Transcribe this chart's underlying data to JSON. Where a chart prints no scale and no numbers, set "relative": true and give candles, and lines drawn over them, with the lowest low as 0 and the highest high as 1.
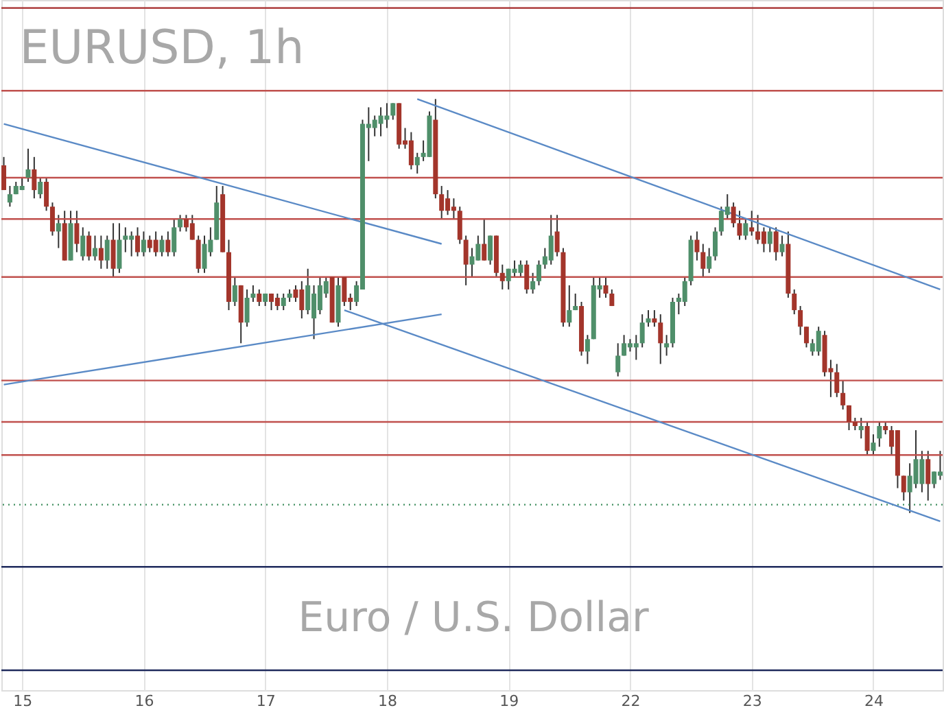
{
  "chart_data": {
    "type": "candlestick",
    "relative": true,
    "annotations": [
      "EURUSD, 1h",
      "Euro / U.S. Dollar"
    ],
    "categories": [
      null,
      null,
      null,
      "15",
      null,
      null,
      null,
      null,
      null,
      null,
      null,
      null,
      null,
      null,
      null,
      null,
      null,
      null,
      null,
      null,
      null,
      null,
      null,
      "16",
      null,
      null,
      null,
      null,
      null,
      null,
      null,
      null,
      null,
      null,
      null,
      null,
      null,
      null,
      null,
      null,
      null,
      null,
      null,
      "17",
      null,
      null,
      null,
      null,
      null,
      null,
      null,
      null,
      null,
      null,
      null,
      null,
      null,
      null,
      null,
      null,
      null,
      null,
      null,
      "18",
      null,
      null,
      null,
      null,
      null,
      null,
      null,
      null,
      null,
      null,
      null,
      null,
      null,
      null,
      null,
      null,
      null,
      null,
      null,
      "19",
      null,
      null,
      null,
      null,
      null,
      null,
      null,
      null,
      null,
      null,
      null,
      null,
      null,
      null,
      null,
      null,
      null,
      null,
      null,
      "22",
      null,
      null,
      null,
      null,
      null,
      null,
      null,
      null,
      null,
      null,
      null,
      null,
      null,
      null,
      null,
      null,
      null,
      null,
      null,
      "23",
      null,
      null,
      null,
      null,
      null,
      null,
      null,
      null,
      null,
      null,
      null,
      null,
      null,
      null,
      null,
      null,
      null,
      null,
      null,
      "24",
      null,
      null,
      null,
      null,
      null,
      null,
      null,
      null,
      null,
      null,
      null
    ],
    "ohlc": [
      [
        0.84,
        0.86,
        0.78,
        0.78
      ],
      [
        0.75,
        0.79,
        0.74,
        0.77
      ],
      [
        0.77,
        0.8,
        0.77,
        0.79
      ],
      [
        0.78,
        0.81,
        0.78,
        0.79
      ],
      [
        0.81,
        0.88,
        0.8,
        0.83
      ],
      [
        0.83,
        0.86,
        0.76,
        0.78
      ],
      [
        0.77,
        0.81,
        0.76,
        0.8
      ],
      [
        0.8,
        0.81,
        0.73,
        0.74
      ],
      [
        0.74,
        0.75,
        0.67,
        0.68
      ],
      [
        0.68,
        0.72,
        0.64,
        0.7
      ],
      [
        0.7,
        0.73,
        0.61,
        0.61
      ],
      [
        0.61,
        0.73,
        0.61,
        0.7
      ],
      [
        0.7,
        0.73,
        0.63,
        0.65
      ],
      [
        0.62,
        0.69,
        0.61,
        0.67
      ],
      [
        0.67,
        0.68,
        0.61,
        0.62
      ],
      [
        0.62,
        0.67,
        0.61,
        0.64
      ],
      [
        0.64,
        0.67,
        0.59,
        0.61
      ],
      [
        0.61,
        0.67,
        0.59,
        0.66
      ],
      [
        0.66,
        0.7,
        0.57,
        0.59
      ],
      [
        0.59,
        0.7,
        0.58,
        0.66
      ],
      [
        0.66,
        0.69,
        0.63,
        0.67
      ],
      [
        0.66,
        0.68,
        0.62,
        0.67
      ],
      [
        0.67,
        0.69,
        0.62,
        0.63
      ],
      [
        0.63,
        0.68,
        0.62,
        0.66
      ],
      [
        0.66,
        0.67,
        0.63,
        0.64
      ],
      [
        0.66,
        0.68,
        0.62,
        0.63
      ],
      [
        0.63,
        0.67,
        0.62,
        0.66
      ],
      [
        0.66,
        0.68,
        0.62,
        0.63
      ],
      [
        0.63,
        0.71,
        0.62,
        0.69
      ],
      [
        0.69,
        0.72,
        0.68,
        0.71
      ],
      [
        0.71,
        0.72,
        0.68,
        0.69
      ],
      [
        0.7,
        0.72,
        0.66,
        0.66
      ],
      [
        0.66,
        0.67,
        0.58,
        0.59
      ],
      [
        0.59,
        0.67,
        0.58,
        0.65
      ],
      [
        0.63,
        0.69,
        0.62,
        0.66
      ],
      [
        0.66,
        0.79,
        0.66,
        0.75
      ],
      [
        0.77,
        0.79,
        0.63,
        0.63
      ],
      [
        0.63,
        0.66,
        0.49,
        0.51
      ],
      [
        0.51,
        0.57,
        0.5,
        0.55
      ],
      [
        0.55,
        0.55,
        0.41,
        0.46
      ],
      [
        0.46,
        0.54,
        0.45,
        0.52
      ],
      [
        0.52,
        0.55,
        0.51,
        0.53
      ],
      [
        0.53,
        0.54,
        0.5,
        0.51
      ],
      [
        0.51,
        0.53,
        0.5,
        0.53
      ],
      [
        0.53,
        0.53,
        0.49,
        0.51
      ],
      [
        0.52,
        0.53,
        0.49,
        0.5
      ],
      [
        0.5,
        0.53,
        0.49,
        0.52
      ],
      [
        0.52,
        0.54,
        0.51,
        0.53
      ],
      [
        0.54,
        0.55,
        0.51,
        0.52
      ],
      [
        0.54,
        0.56,
        0.47,
        0.49
      ],
      [
        0.49,
        0.59,
        0.48,
        0.55
      ],
      [
        0.47,
        0.55,
        0.42,
        0.53
      ],
      [
        0.49,
        0.57,
        0.48,
        0.55
      ],
      [
        0.53,
        0.57,
        0.52,
        0.56
      ],
      [
        0.57,
        0.57,
        0.46,
        0.46
      ],
      [
        0.46,
        0.57,
        0.45,
        0.55
      ],
      [
        0.57,
        0.57,
        0.5,
        0.51
      ],
      [
        0.52,
        0.53,
        0.49,
        0.51
      ],
      [
        0.51,
        0.56,
        0.5,
        0.55
      ],
      [
        0.54,
        0.95,
        0.54,
        0.94
      ],
      [
        0.93,
        0.98,
        0.85,
        0.94
      ],
      [
        0.93,
        0.96,
        0.91,
        0.95
      ],
      [
        0.94,
        0.98,
        0.91,
        0.96
      ],
      [
        0.95,
        0.99,
        0.93,
        0.96
      ],
      [
        0.96,
        0.99,
        0.95,
        0.99
      ],
      [
        0.99,
        0.99,
        0.88,
        0.89
      ],
      [
        0.9,
        0.93,
        0.88,
        0.89
      ],
      [
        0.9,
        0.92,
        0.83,
        0.84
      ],
      [
        0.84,
        0.87,
        0.82,
        0.86
      ],
      [
        0.86,
        0.9,
        0.85,
        0.87
      ],
      [
        0.86,
        0.97,
        0.86,
        0.96
      ],
      [
        0.95,
        1.0,
        0.76,
        0.77
      ],
      [
        0.77,
        0.79,
        0.71,
        0.73
      ],
      [
        0.76,
        0.78,
        0.72,
        0.73
      ],
      [
        0.74,
        0.76,
        0.71,
        0.73
      ],
      [
        0.73,
        0.74,
        0.65,
        0.66
      ],
      [
        0.66,
        0.67,
        0.55,
        0.6
      ],
      [
        0.6,
        0.64,
        0.57,
        0.62
      ],
      [
        0.61,
        0.67,
        0.61,
        0.65
      ],
      [
        0.65,
        0.71,
        0.61,
        0.61
      ],
      [
        0.61,
        0.67,
        0.6,
        0.67
      ],
      [
        0.67,
        0.67,
        0.57,
        0.58
      ],
      [
        0.58,
        0.6,
        0.54,
        0.56
      ],
      [
        0.56,
        0.59,
        0.54,
        0.59
      ],
      [
        0.58,
        0.61,
        0.57,
        0.59
      ],
      [
        0.58,
        0.61,
        0.57,
        0.6
      ],
      [
        0.6,
        0.61,
        0.53,
        0.54
      ],
      [
        0.54,
        0.58,
        0.53,
        0.56
      ],
      [
        0.56,
        0.61,
        0.55,
        0.6
      ],
      [
        0.6,
        0.64,
        0.59,
        0.62
      ],
      [
        0.61,
        0.72,
        0.6,
        0.67
      ],
      [
        0.68,
        0.72,
        0.62,
        0.63
      ],
      [
        0.63,
        0.64,
        0.45,
        0.46
      ],
      [
        0.46,
        0.55,
        0.45,
        0.49
      ],
      [
        0.49,
        0.53,
        0.49,
        0.5
      ],
      [
        0.5,
        0.51,
        0.38,
        0.39
      ],
      [
        0.39,
        0.43,
        0.36,
        0.42
      ],
      [
        0.42,
        0.57,
        0.42,
        0.55
      ],
      [
        0.54,
        0.57,
        0.52,
        0.55
      ],
      [
        0.55,
        0.57,
        0.52,
        0.53
      ],
      [
        0.53,
        0.54,
        0.5,
        0.5
      ],
      [
        0.34,
        0.41,
        0.33,
        0.38
      ],
      [
        0.38,
        0.43,
        0.38,
        0.41
      ],
      [
        0.4,
        0.42,
        0.39,
        0.41
      ],
      [
        0.4,
        0.43,
        0.37,
        0.41
      ],
      [
        0.41,
        0.48,
        0.4,
        0.46
      ],
      [
        0.46,
        0.49,
        0.45,
        0.47
      ],
      [
        0.47,
        0.49,
        0.45,
        0.46
      ],
      [
        0.46,
        0.48,
        0.36,
        0.41
      ],
      [
        0.4,
        0.43,
        0.38,
        0.41
      ],
      [
        0.41,
        0.52,
        0.4,
        0.51
      ],
      [
        0.51,
        0.53,
        0.48,
        0.52
      ],
      [
        0.51,
        0.57,
        0.5,
        0.56
      ],
      [
        0.56,
        0.67,
        0.55,
        0.66
      ],
      [
        0.66,
        0.68,
        0.61,
        0.63
      ],
      [
        0.63,
        0.65,
        0.57,
        0.59
      ],
      [
        0.59,
        0.64,
        0.58,
        0.62
      ],
      [
        0.62,
        0.69,
        0.61,
        0.68
      ],
      [
        0.68,
        0.74,
        0.67,
        0.73
      ],
      [
        0.72,
        0.77,
        0.71,
        0.74
      ],
      [
        0.74,
        0.75,
        0.69,
        0.7
      ],
      [
        0.7,
        0.73,
        0.66,
        0.67
      ],
      [
        0.67,
        0.71,
        0.66,
        0.7
      ],
      [
        0.69,
        0.73,
        0.67,
        0.68
      ],
      [
        0.68,
        0.72,
        0.65,
        0.66
      ],
      [
        0.68,
        0.69,
        0.63,
        0.65
      ],
      [
        0.65,
        0.69,
        0.63,
        0.68
      ],
      [
        0.68,
        0.69,
        0.61,
        0.63
      ],
      [
        0.63,
        0.67,
        0.62,
        0.65
      ],
      [
        0.65,
        0.68,
        0.52,
        0.53
      ],
      [
        0.53,
        0.54,
        0.48,
        0.49
      ],
      [
        0.49,
        0.5,
        0.43,
        0.45
      ],
      [
        0.45,
        0.45,
        0.4,
        0.41
      ],
      [
        0.39,
        0.42,
        0.38,
        0.41
      ],
      [
        0.39,
        0.45,
        0.38,
        0.44
      ],
      [
        0.43,
        0.44,
        0.33,
        0.34
      ],
      [
        0.35,
        0.37,
        0.28,
        0.34
      ],
      [
        0.34,
        0.36,
        0.28,
        0.29
      ],
      [
        0.29,
        0.32,
        0.25,
        0.26
      ],
      [
        0.26,
        0.26,
        0.2,
        0.22
      ],
      [
        0.22,
        0.23,
        0.2,
        0.21
      ],
      [
        0.2,
        0.23,
        0.18,
        0.21
      ],
      [
        0.21,
        0.22,
        0.14,
        0.15
      ],
      [
        0.15,
        0.19,
        0.14,
        0.17
      ],
      [
        0.18,
        0.22,
        0.16,
        0.21
      ],
      [
        0.21,
        0.22,
        0.19,
        0.2
      ],
      [
        0.2,
        0.21,
        0.14,
        0.16
      ],
      [
        0.2,
        0.2,
        0.06,
        0.09
      ],
      [
        0.09,
        0.09,
        0.03,
        0.05
      ],
      [
        0.05,
        0.12,
        0.0,
        0.09
      ],
      [
        0.07,
        0.2,
        0.06,
        0.13
      ],
      [
        0.07,
        0.15,
        0.05,
        0.13
      ],
      [
        0.13,
        0.15,
        0.03,
        0.07
      ],
      [
        0.07,
        0.1,
        0.06,
        0.1
      ],
      [
        0.09,
        0.15,
        0.08,
        0.1
      ]
    ],
    "series": [
      {
        "type": "line",
        "color": "#5a8ac6",
        "values": [
          0.94,
          null,
          null,
          null,
          null,
          null,
          null,
          null,
          null,
          null,
          null,
          null,
          null,
          null,
          null,
          null,
          null,
          null,
          null,
          null,
          null,
          null,
          null,
          null,
          null,
          null,
          null,
          null,
          null,
          null,
          null,
          null,
          null,
          null,
          null,
          null,
          null,
          null,
          null,
          null,
          null,
          null,
          null,
          null,
          null,
          null,
          null,
          null,
          null,
          null,
          null,
          null,
          null,
          null,
          null,
          null,
          null,
          null,
          null,
          null,
          null,
          null,
          null,
          null,
          null,
          null,
          null,
          null,
          null,
          null,
          null,
          null,
          0.65,
          null,
          null,
          null,
          null,
          null,
          null,
          null,
          null,
          null,
          null,
          null,
          null,
          null,
          null,
          null,
          null,
          null,
          null,
          null,
          null,
          null,
          null,
          null,
          null,
          null,
          null,
          null,
          null,
          null,
          null,
          null,
          null,
          null,
          null,
          null,
          null,
          null,
          null,
          null,
          null,
          null,
          null,
          null,
          null,
          null,
          null,
          null,
          null,
          null,
          null,
          null,
          null,
          null,
          null,
          null,
          null,
          null,
          null,
          null,
          null,
          null,
          null,
          null,
          null,
          null,
          null,
          null,
          null,
          null,
          null,
          null,
          null,
          null,
          null,
          null,
          null,
          null,
          null,
          null,
          null,
          null,
          null
        ]
      },
      {
        "type": "line",
        "color": "#5a8ac6",
        "values": [
          0.31,
          null,
          null,
          null,
          null,
          null,
          null,
          null,
          null,
          null,
          null,
          null,
          null,
          null,
          null,
          null,
          null,
          null,
          null,
          null,
          null,
          null,
          null,
          null,
          null,
          null,
          null,
          null,
          null,
          null,
          null,
          null,
          null,
          null,
          null,
          null,
          null,
          null,
          null,
          null,
          null,
          null,
          null,
          null,
          null,
          null,
          null,
          null,
          null,
          null,
          null,
          null,
          null,
          null,
          null,
          null,
          null,
          null,
          null,
          null,
          null,
          null,
          null,
          null,
          null,
          null,
          null,
          null,
          null,
          null,
          null,
          null,
          0.48,
          null,
          null,
          null,
          null,
          null,
          null,
          null,
          null,
          null,
          null,
          null,
          null,
          null,
          null,
          null,
          null,
          null,
          null,
          null,
          null,
          null,
          null,
          null,
          null,
          null,
          null,
          null,
          null,
          null,
          null,
          null,
          null,
          null,
          null,
          null,
          null,
          null,
          null,
          null,
          null,
          null,
          null,
          null,
          null,
          null,
          null,
          null,
          null,
          null,
          null,
          null,
          null,
          null,
          null,
          null,
          null,
          null,
          null,
          null,
          null,
          null,
          null,
          null,
          null,
          null,
          null,
          null,
          null,
          null,
          null,
          null,
          null,
          null,
          null,
          null,
          null,
          null,
          null,
          null,
          null,
          null,
          null
        ]
      },
      {
        "type": "line",
        "color": "#5a8ac6",
        "values": [
          null,
          null,
          null,
          null,
          null,
          null,
          null,
          null,
          null,
          null,
          null,
          null,
          null,
          null,
          null,
          null,
          null,
          null,
          null,
          null,
          null,
          null,
          null,
          null,
          null,
          null,
          null,
          null,
          null,
          null,
          null,
          null,
          null,
          null,
          null,
          null,
          null,
          null,
          null,
          null,
          null,
          null,
          null,
          null,
          null,
          null,
          null,
          null,
          null,
          null,
          null,
          null,
          null,
          null,
          null,
          null,
          0.49,
          null,
          null,
          null,
          null,
          null,
          null,
          null,
          null,
          null,
          null,
          null,
          null,
          null,
          null,
          null,
          null,
          null,
          null,
          null,
          null,
          null,
          null,
          null,
          null,
          null,
          null,
          null,
          null,
          null,
          null,
          null,
          null,
          null,
          null,
          null,
          null,
          null,
          null,
          null,
          null,
          null,
          null,
          null,
          null,
          null,
          null,
          null,
          null,
          null,
          null,
          null,
          null,
          null,
          null,
          null,
          null,
          null,
          null,
          null,
          null,
          null,
          null,
          null,
          null,
          null,
          null,
          null,
          null,
          null,
          null,
          null,
          null,
          null,
          null,
          null,
          null,
          null,
          null,
          null,
          null,
          null,
          null,
          null,
          null,
          null,
          null,
          null,
          null,
          null,
          null,
          null,
          null,
          null,
          null,
          null,
          null,
          null,
          -0.02
        ]
      },
      {
        "type": "line",
        "color": "#5a8ac6",
        "values": [
          null,
          null,
          null,
          null,
          null,
          null,
          null,
          null,
          null,
          null,
          null,
          null,
          null,
          null,
          null,
          null,
          null,
          null,
          null,
          null,
          null,
          null,
          null,
          null,
          null,
          null,
          null,
          null,
          null,
          null,
          null,
          null,
          null,
          null,
          null,
          null,
          null,
          null,
          null,
          null,
          null,
          null,
          null,
          null,
          null,
          null,
          null,
          null,
          null,
          null,
          null,
          null,
          null,
          null,
          null,
          null,
          null,
          null,
          null,
          null,
          null,
          null,
          null,
          null,
          null,
          null,
          null,
          null,
          1.0,
          null,
          null,
          null,
          null,
          null,
          null,
          null,
          null,
          null,
          null,
          null,
          null,
          null,
          null,
          null,
          null,
          null,
          null,
          null,
          null,
          null,
          null,
          null,
          null,
          null,
          null,
          null,
          null,
          null,
          null,
          null,
          null,
          null,
          null,
          null,
          null,
          null,
          null,
          null,
          null,
          null,
          null,
          null,
          null,
          null,
          null,
          null,
          null,
          null,
          null,
          null,
          null,
          null,
          null,
          null,
          null,
          null,
          null,
          null,
          null,
          null,
          null,
          null,
          null,
          null,
          null,
          null,
          null,
          null,
          null,
          null,
          null,
          null,
          null,
          null,
          null,
          null,
          null,
          null,
          null,
          null,
          null,
          null,
          null,
          null,
          0.54
        ]
      }
    ],
    "ref_lines": [
      {
        "axis": "y",
        "value": 1.22,
        "color": "#a52a2a"
      },
      {
        "axis": "y",
        "value": 1.02,
        "color": "#c0504d"
      },
      {
        "axis": "y",
        "value": 0.81,
        "color": "#c0504d"
      },
      {
        "axis": "y",
        "value": 0.71,
        "color": "#c0504d"
      },
      {
        "axis": "y",
        "value": 0.57,
        "color": "#c0504d"
      },
      {
        "axis": "y",
        "value": 0.32,
        "color": "#c0504d"
      },
      {
        "axis": "y",
        "value": 0.22,
        "color": "#c0504d"
      },
      {
        "axis": "y",
        "value": 0.14,
        "color": "#c0504d"
      },
      {
        "axis": "y",
        "value": 0.02,
        "color": "#3f8f5f",
        "line_style": "dotted"
      },
      {
        "axis": "y",
        "value": -0.13,
        "color": "#1f2a5c"
      },
      {
        "axis": "y",
        "value": -0.38,
        "color": "#1f2a5c"
      }
    ],
    "grid": "x",
    "tick_labels": "x"
  }
}
